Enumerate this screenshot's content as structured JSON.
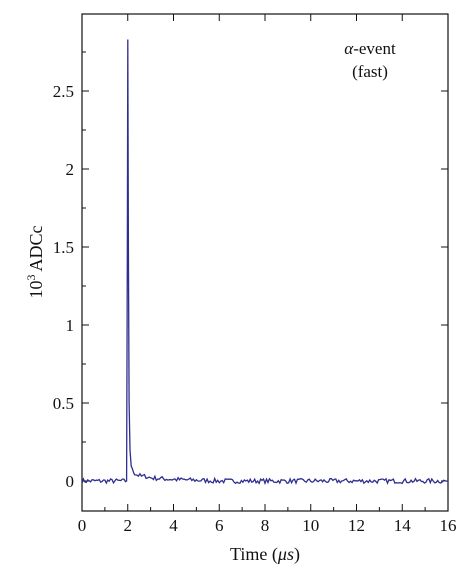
{
  "chart_data": {
    "type": "line",
    "xlabel_prefix": "Time (",
    "xlabel_unit": "μs",
    "xlabel_suffix": ")",
    "ylabel_exp_base": "10",
    "ylabel_exp": "3",
    "ylabel_unit": "ADCc",
    "xlim": [
      0,
      16
    ],
    "ylim": [
      -0.05,
      2.9
    ],
    "xticks": [
      0,
      2,
      4,
      6,
      8,
      10,
      12,
      14,
      16
    ],
    "yticks": [
      0,
      0.5,
      1,
      1.5,
      2,
      2.5
    ],
    "annotation_symbol": "α",
    "annotation_line1": "-event",
    "annotation_line2": "(fast)",
    "line_color": "#2e2e8f",
    "series": [
      {
        "x": [
          0,
          0.5,
          1.0,
          1.5,
          1.9,
          1.95,
          1.98,
          2.0,
          2.03,
          2.06,
          2.1,
          2.15,
          2.2,
          2.3,
          2.4,
          2.6,
          2.8,
          3.0,
          3.5,
          4.0,
          5.0,
          6.0,
          8.0,
          10.0,
          12.0,
          14.0,
          16.0
        ],
        "y": [
          0.0,
          0.0,
          0.0,
          0.0,
          0.0,
          0.0,
          1.4,
          2.83,
          1.5,
          0.5,
          0.2,
          0.1,
          0.07,
          0.05,
          0.04,
          0.03,
          0.03,
          0.02,
          0.015,
          0.01,
          0.005,
          0.0,
          0.0,
          0.0,
          0.0,
          0.0,
          0.0
        ]
      }
    ]
  }
}
